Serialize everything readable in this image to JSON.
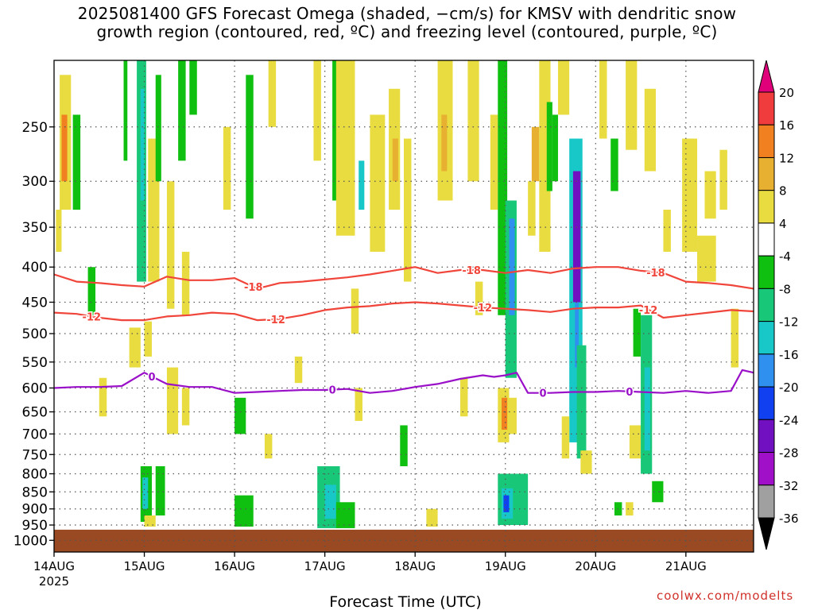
{
  "title_lines": [
    "2025081400 GFS Forecast Omega (shaded, −cm/s) for KMSV with dendritic snow",
    "growth region (contoured, red, ºC) and freezing level (contoured, purple, ºC)"
  ],
  "watermark": "coolwx.com/modelts",
  "colors": {
    "freezing_line": "#9a10c8",
    "dgz_line": "#f0453a",
    "ground": "#9a4a22",
    "grid": "#555555"
  },
  "chart_data": {
    "type": "heatmap",
    "title": "2025081400 GFS Forecast Omega (shaded, −cm/s) for KMSV with dendritic snow growth region (contoured, red, ºC) and freezing level (contoured, purple, ºC)",
    "xlabel": "Forecast Time (UTC)",
    "ylabel": "",
    "x_axis": {
      "unit": "hours since 2025-08-14 00 UTC",
      "range": [
        0,
        186
      ],
      "ticks": [
        {
          "h": 0,
          "label": "14AUG",
          "sub": "2025"
        },
        {
          "h": 24,
          "label": "15AUG"
        },
        {
          "h": 48,
          "label": "16AUG"
        },
        {
          "h": 72,
          "label": "17AUG"
        },
        {
          "h": 96,
          "label": "18AUG"
        },
        {
          "h": 120,
          "label": "19AUG"
        },
        {
          "h": 144,
          "label": "20AUG"
        },
        {
          "h": 168,
          "label": "21AUG"
        }
      ]
    },
    "y_axis": {
      "unit": "hPa",
      "scale": "log",
      "inverted": true,
      "range": [
        1040,
        200
      ],
      "ticks": [
        250,
        300,
        350,
        400,
        450,
        500,
        550,
        600,
        650,
        700,
        750,
        800,
        850,
        900,
        950,
        1000
      ]
    },
    "grid": true,
    "ground_level_hPa": 965,
    "colorbar": {
      "levels": [
        20,
        16,
        12,
        8,
        4,
        -4,
        -8,
        -12,
        -16,
        -20,
        -24,
        -28,
        -32,
        -36
      ],
      "colors": [
        "#e0007a",
        "#f03c3c",
        "#f08020",
        "#e8b030",
        "#e8dc40",
        "#ffffff",
        "#10c010",
        "#18c878",
        "#18c8c8",
        "#3090f0",
        "#1040f0",
        "#7010c0",
        "#a010c8",
        "#a0a0a0",
        "#000000"
      ]
    },
    "omega_cells": [
      {
        "t0": 1.5,
        "t1": 4.5,
        "p0": 210,
        "p1": 330,
        "v": 6
      },
      {
        "t0": 2,
        "t1": 3.5,
        "p0": 240,
        "p1": 300,
        "v": 12
      },
      {
        "t0": 0.5,
        "t1": 2,
        "p0": 330,
        "p1": 380,
        "v": 6
      },
      {
        "t0": 5,
        "t1": 7,
        "p0": 240,
        "p1": 330,
        "v": -8
      },
      {
        "t0": 9,
        "t1": 11,
        "p0": 400,
        "p1": 470,
        "v": -8
      },
      {
        "t0": 18.5,
        "t1": 19.5,
        "p0": 200,
        "p1": 280,
        "v": -8
      },
      {
        "t0": 22,
        "t1": 24.5,
        "p0": 200,
        "p1": 420,
        "v": -10
      },
      {
        "t0": 23,
        "t1": 24,
        "p0": 220,
        "p1": 320,
        "v": -14
      },
      {
        "t0": 25,
        "t1": 28,
        "p0": 260,
        "p1": 420,
        "v": 6
      },
      {
        "t0": 27,
        "t1": 28.5,
        "p0": 210,
        "p1": 300,
        "v": -8
      },
      {
        "t0": 30,
        "t1": 32,
        "p0": 300,
        "p1": 460,
        "v": 6
      },
      {
        "t0": 33,
        "t1": 35,
        "p0": 200,
        "p1": 280,
        "v": -8
      },
      {
        "t0": 34,
        "t1": 36,
        "p0": 380,
        "p1": 470,
        "v": 6
      },
      {
        "t0": 36,
        "t1": 38,
        "p0": 200,
        "p1": 240,
        "v": -8
      },
      {
        "t0": 45,
        "t1": 47,
        "p0": 250,
        "p1": 330,
        "v": 6
      },
      {
        "t0": 51,
        "t1": 53,
        "p0": 210,
        "p1": 340,
        "v": -8
      },
      {
        "t0": 57,
        "t1": 59,
        "p0": 200,
        "p1": 250,
        "v": 6
      },
      {
        "t0": 69,
        "t1": 71,
        "p0": 200,
        "p1": 280,
        "v": 6
      },
      {
        "t0": 74,
        "t1": 76,
        "p0": 200,
        "p1": 320,
        "v": -8
      },
      {
        "t0": 75,
        "t1": 80,
        "p0": 200,
        "p1": 360,
        "v": 6
      },
      {
        "t0": 81,
        "t1": 82.5,
        "p0": 280,
        "p1": 330,
        "v": -14
      },
      {
        "t0": 79,
        "t1": 81,
        "p0": 430,
        "p1": 500,
        "v": 6
      },
      {
        "t0": 84,
        "t1": 88,
        "p0": 240,
        "p1": 380,
        "v": 6
      },
      {
        "t0": 89,
        "t1": 92,
        "p0": 220,
        "p1": 330,
        "v": 6
      },
      {
        "t0": 90,
        "t1": 91.5,
        "p0": 260,
        "p1": 300,
        "v": 10
      },
      {
        "t0": 93,
        "t1": 95,
        "p0": 260,
        "p1": 420,
        "v": 6
      },
      {
        "t0": 102,
        "t1": 106,
        "p0": 200,
        "p1": 320,
        "v": 6
      },
      {
        "t0": 103,
        "t1": 104.5,
        "p0": 240,
        "p1": 290,
        "v": 10
      },
      {
        "t0": 110,
        "t1": 113,
        "p0": 200,
        "p1": 300,
        "v": 6
      },
      {
        "t0": 116,
        "t1": 118,
        "p0": 240,
        "p1": 330,
        "v": 6
      },
      {
        "t0": 118,
        "t1": 120.5,
        "p0": 200,
        "p1": 470,
        "v": -8
      },
      {
        "t0": 120,
        "t1": 123,
        "p0": 320,
        "p1": 580,
        "v": -12
      },
      {
        "t0": 121,
        "t1": 122.5,
        "p0": 340,
        "p1": 470,
        "v": -18
      },
      {
        "t0": 126,
        "t1": 128,
        "p0": 300,
        "p1": 360,
        "v": 6
      },
      {
        "t0": 127,
        "t1": 129,
        "p0": 250,
        "p1": 300,
        "v": 10
      },
      {
        "t0": 129,
        "t1": 132,
        "p0": 200,
        "p1": 380,
        "v": 6
      },
      {
        "t0": 131,
        "t1": 132.5,
        "p0": 230,
        "p1": 310,
        "v": -8
      },
      {
        "t0": 132.5,
        "t1": 134,
        "p0": 240,
        "p1": 300,
        "v": -8
      },
      {
        "t0": 134,
        "t1": 137,
        "p0": 200,
        "p1": 240,
        "v": 6
      },
      {
        "t0": 137,
        "t1": 140.5,
        "p0": 260,
        "p1": 720,
        "v": -14
      },
      {
        "t0": 138,
        "t1": 140,
        "p0": 290,
        "p1": 450,
        "v": -28
      },
      {
        "t0": 138.5,
        "t1": 139.5,
        "p0": 450,
        "p1": 560,
        "v": -18
      },
      {
        "t0": 139,
        "t1": 141.5,
        "p0": 520,
        "p1": 760,
        "v": -10
      },
      {
        "t0": 145,
        "t1": 147,
        "p0": 200,
        "p1": 260,
        "v": 6
      },
      {
        "t0": 148,
        "t1": 150,
        "p0": 260,
        "p1": 310,
        "v": -8
      },
      {
        "t0": 152,
        "t1": 155,
        "p0": 200,
        "p1": 270,
        "v": 6
      },
      {
        "t0": 157,
        "t1": 160,
        "p0": 220,
        "p1": 290,
        "v": 6
      },
      {
        "t0": 162,
        "t1": 164,
        "p0": 330,
        "p1": 380,
        "v": 6
      },
      {
        "t0": 167,
        "t1": 171,
        "p0": 260,
        "p1": 380,
        "v": 6
      },
      {
        "t0": 171,
        "t1": 176,
        "p0": 360,
        "p1": 420,
        "v": 6
      },
      {
        "t0": 173,
        "t1": 176,
        "p0": 290,
        "p1": 340,
        "v": 6
      },
      {
        "t0": 177,
        "t1": 179,
        "p0": 270,
        "p1": 330,
        "v": 6
      },
      {
        "t0": 180,
        "t1": 182,
        "p0": 460,
        "p1": 560,
        "v": 6
      },
      {
        "t0": 12,
        "t1": 14,
        "p0": 580,
        "p1": 660,
        "v": 6
      },
      {
        "t0": 20,
        "t1": 23,
        "p0": 490,
        "p1": 560,
        "v": 6
      },
      {
        "t0": 24,
        "t1": 26,
        "p0": 480,
        "p1": 540,
        "v": 6
      },
      {
        "t0": 30,
        "t1": 33,
        "p0": 560,
        "p1": 700,
        "v": 6
      },
      {
        "t0": 48,
        "t1": 51,
        "p0": 620,
        "p1": 700,
        "v": -8
      },
      {
        "t0": 56,
        "t1": 58,
        "p0": 700,
        "p1": 760,
        "v": 6
      },
      {
        "t0": 64,
        "t1": 66,
        "p0": 540,
        "p1": 590,
        "v": 6
      },
      {
        "t0": 80,
        "t1": 82,
        "p0": 600,
        "p1": 670,
        "v": 6
      },
      {
        "t0": 92,
        "t1": 94,
        "p0": 680,
        "p1": 780,
        "v": -8
      },
      {
        "t0": 112,
        "t1": 114,
        "p0": 420,
        "p1": 470,
        "v": 6
      },
      {
        "t0": 118,
        "t1": 121,
        "p0": 600,
        "p1": 720,
        "v": 6
      },
      {
        "t0": 119,
        "t1": 120.5,
        "p0": 620,
        "p1": 690,
        "v": 12
      },
      {
        "t0": 121,
        "t1": 123,
        "p0": 620,
        "p1": 700,
        "v": 6
      },
      {
        "t0": 135,
        "t1": 137,
        "p0": 660,
        "p1": 760,
        "v": 6
      },
      {
        "t0": 140,
        "t1": 143,
        "p0": 740,
        "p1": 800,
        "v": 6
      },
      {
        "t0": 153,
        "t1": 156,
        "p0": 680,
        "p1": 760,
        "v": 6
      },
      {
        "t0": 154,
        "t1": 156,
        "p0": 460,
        "p1": 540,
        "v": -8
      },
      {
        "t0": 156,
        "t1": 159,
        "p0": 470,
        "p1": 800,
        "v": -10
      },
      {
        "t0": 157,
        "t1": 158.5,
        "p0": 560,
        "p1": 740,
        "v": -16
      },
      {
        "t0": 159,
        "t1": 162,
        "p0": 820,
        "p1": 880,
        "v": -8
      },
      {
        "t0": 149,
        "t1": 151,
        "p0": 880,
        "p1": 920,
        "v": -8
      },
      {
        "t0": 152,
        "t1": 154,
        "p0": 880,
        "p1": 920,
        "v": 6
      },
      {
        "t0": 23,
        "t1": 26,
        "p0": 780,
        "p1": 940,
        "v": -8
      },
      {
        "t0": 23.5,
        "t1": 25,
        "p0": 810,
        "p1": 900,
        "v": -14
      },
      {
        "t0": 27,
        "t1": 29.5,
        "p0": 780,
        "p1": 920,
        "v": -8
      },
      {
        "t0": 24,
        "t1": 27,
        "p0": 920,
        "p1": 955,
        "v": 6
      },
      {
        "t0": 48,
        "t1": 53,
        "p0": 860,
        "p1": 955,
        "v": -8
      },
      {
        "t0": 70,
        "t1": 76,
        "p0": 780,
        "p1": 960,
        "v": -10
      },
      {
        "t0": 72,
        "t1": 75,
        "p0": 830,
        "p1": 930,
        "v": -14
      },
      {
        "t0": 75,
        "t1": 80,
        "p0": 880,
        "p1": 960,
        "v": -8
      },
      {
        "t0": 99,
        "t1": 102,
        "p0": 900,
        "p1": 955,
        "v": 6
      },
      {
        "t0": 118,
        "t1": 126,
        "p0": 800,
        "p1": 950,
        "v": -10
      },
      {
        "t0": 119,
        "t1": 122,
        "p0": 840,
        "p1": 930,
        "v": -16
      },
      {
        "t0": 119.5,
        "t1": 121,
        "p0": 860,
        "p1": 910,
        "v": -22
      },
      {
        "t0": 34,
        "t1": 36,
        "p0": 600,
        "p1": 680,
        "v": 6
      },
      {
        "t0": 108,
        "t1": 110,
        "p0": 580,
        "p1": 660,
        "v": 6
      }
    ],
    "freezing_level": {
      "label": "0",
      "t": [
        0,
        6,
        12,
        18,
        24,
        30,
        36,
        42,
        48,
        54,
        60,
        66,
        72,
        78,
        84,
        90,
        96,
        102,
        108,
        114,
        117,
        120,
        123,
        126,
        132,
        138,
        144,
        150,
        156,
        162,
        168,
        174,
        180,
        183,
        186
      ],
      "p": [
        600,
        598,
        598,
        596,
        570,
        592,
        598,
        598,
        610,
        608,
        606,
        604,
        604,
        602,
        610,
        606,
        598,
        592,
        582,
        575,
        578,
        575,
        570,
        610,
        610,
        608,
        608,
        606,
        608,
        610,
        606,
        610,
        606,
        565,
        570
      ],
      "labels_at_h": [
        26,
        74,
        130,
        153
      ]
    },
    "dgz_minus18": {
      "label": "-18",
      "t": [
        0,
        6,
        12,
        18,
        24,
        30,
        36,
        42,
        48,
        54,
        60,
        66,
        72,
        78,
        84,
        90,
        96,
        102,
        108,
        114,
        120,
        126,
        132,
        138,
        144,
        150,
        156,
        162,
        168,
        174,
        180,
        186
      ],
      "p": [
        410,
        420,
        422,
        425,
        427,
        413,
        418,
        418,
        415,
        430,
        422,
        420,
        417,
        414,
        410,
        405,
        400,
        408,
        404,
        404,
        408,
        404,
        408,
        402,
        400,
        400,
        405,
        408,
        420,
        422,
        425,
        430
      ],
      "labels_at_h": [
        53,
        111,
        160
      ]
    },
    "dgz_minus12": {
      "label": "-12",
      "t": [
        0,
        6,
        12,
        18,
        24,
        30,
        36,
        42,
        48,
        54,
        60,
        66,
        72,
        78,
        84,
        90,
        96,
        102,
        108,
        114,
        120,
        126,
        132,
        138,
        144,
        150,
        156,
        162,
        168,
        174,
        180,
        186
      ],
      "p": [
        466,
        468,
        474,
        478,
        478,
        472,
        470,
        466,
        468,
        478,
        476,
        470,
        462,
        458,
        456,
        452,
        450,
        452,
        455,
        458,
        460,
        462,
        465,
        460,
        458,
        458,
        455,
        474,
        470,
        466,
        462,
        464
      ],
      "labels_at_h": [
        10,
        59,
        114,
        158
      ]
    }
  }
}
